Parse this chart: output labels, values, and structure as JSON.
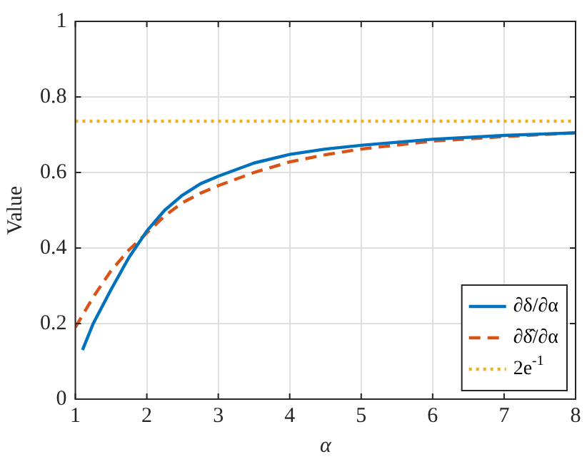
{
  "chart_data": {
    "type": "line",
    "xlabel": "α",
    "ylabel": "Value",
    "xlim": [
      1,
      8
    ],
    "ylim": [
      0,
      1
    ],
    "xticks": [
      1,
      2,
      3,
      4,
      5,
      6,
      7,
      8
    ],
    "yticks": [
      0,
      0.2,
      0.4,
      0.6,
      0.8,
      1
    ],
    "grid": true,
    "legend": "bottom right",
    "marker": "none",
    "series": [
      {
        "name": "∂δ/∂α",
        "color": "#0072bd",
        "line_style": "solid",
        "x": [
          1.1,
          1.25,
          1.5,
          1.75,
          2,
          2.25,
          2.5,
          2.75,
          3,
          3.5,
          4,
          4.5,
          5,
          6,
          7,
          8
        ],
        "values": [
          0.13,
          0.2,
          0.29,
          0.375,
          0.445,
          0.5,
          0.54,
          0.57,
          0.59,
          0.625,
          0.648,
          0.662,
          0.672,
          0.688,
          0.698,
          0.705
        ]
      },
      {
        "name": "∂δ̂/∂α",
        "color": "#d95319",
        "line_style": "dashed",
        "x": [
          1,
          1.25,
          1.5,
          1.75,
          2,
          2.25,
          2.5,
          2.75,
          3,
          3.5,
          4,
          4.5,
          5,
          6,
          7,
          8
        ],
        "values": [
          0.19,
          0.27,
          0.34,
          0.395,
          0.44,
          0.485,
          0.52,
          0.545,
          0.565,
          0.6,
          0.628,
          0.647,
          0.662,
          0.683,
          0.695,
          0.705
        ]
      }
    ],
    "ref_lines": [
      {
        "axis": "y",
        "value": 0.7358,
        "label": "2e$^{-1}$",
        "color": "#edb120",
        "line_style": "dotted"
      }
    ]
  }
}
